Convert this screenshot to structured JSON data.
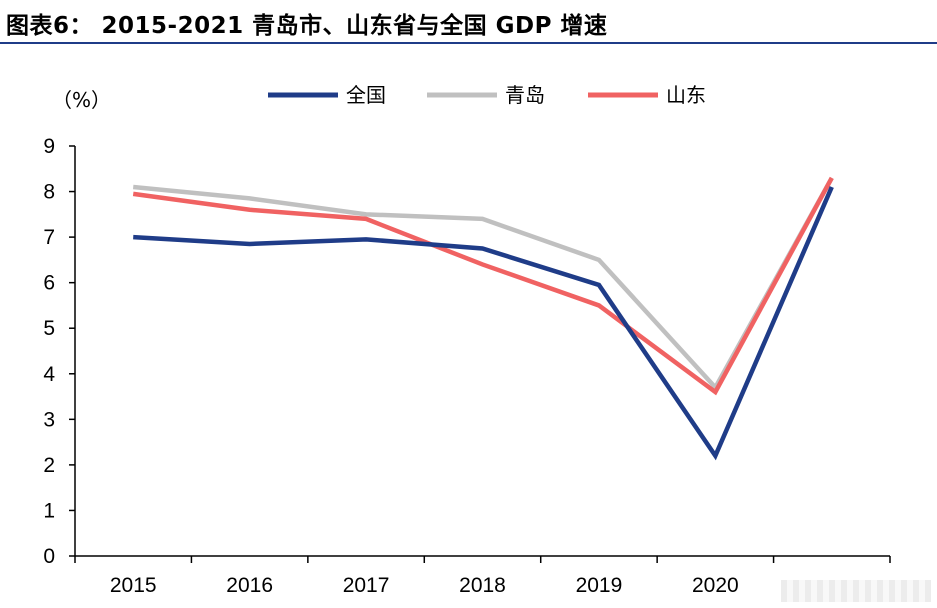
{
  "header": {
    "title": "图表6：  2015-2021 青岛市、山东省与全国 GDP 增速"
  },
  "chart_data": {
    "type": "line",
    "title": "2015-2021 青岛市、山东省与全国 GDP 增速",
    "ylabel": "（%）",
    "xlabel": "",
    "categories": [
      "2015",
      "2016",
      "2017",
      "2018",
      "2019",
      "2020",
      ""
    ],
    "ylim": [
      0,
      9
    ],
    "yticks": [
      0,
      1,
      2,
      3,
      4,
      5,
      6,
      7,
      8,
      9
    ],
    "grid": false,
    "legend_position": "top",
    "series": [
      {
        "name": "全国",
        "color": "#1f3c88",
        "values": [
          7.0,
          6.85,
          6.95,
          6.75,
          5.95,
          2.2,
          8.1
        ]
      },
      {
        "name": "青岛",
        "color": "#c0c0c0",
        "values": [
          8.1,
          7.85,
          7.5,
          7.4,
          6.5,
          3.7,
          8.3
        ]
      },
      {
        "name": "山东",
        "color": "#f06262",
        "values": [
          7.95,
          7.6,
          7.4,
          6.4,
          5.5,
          3.6,
          8.3
        ]
      }
    ]
  }
}
